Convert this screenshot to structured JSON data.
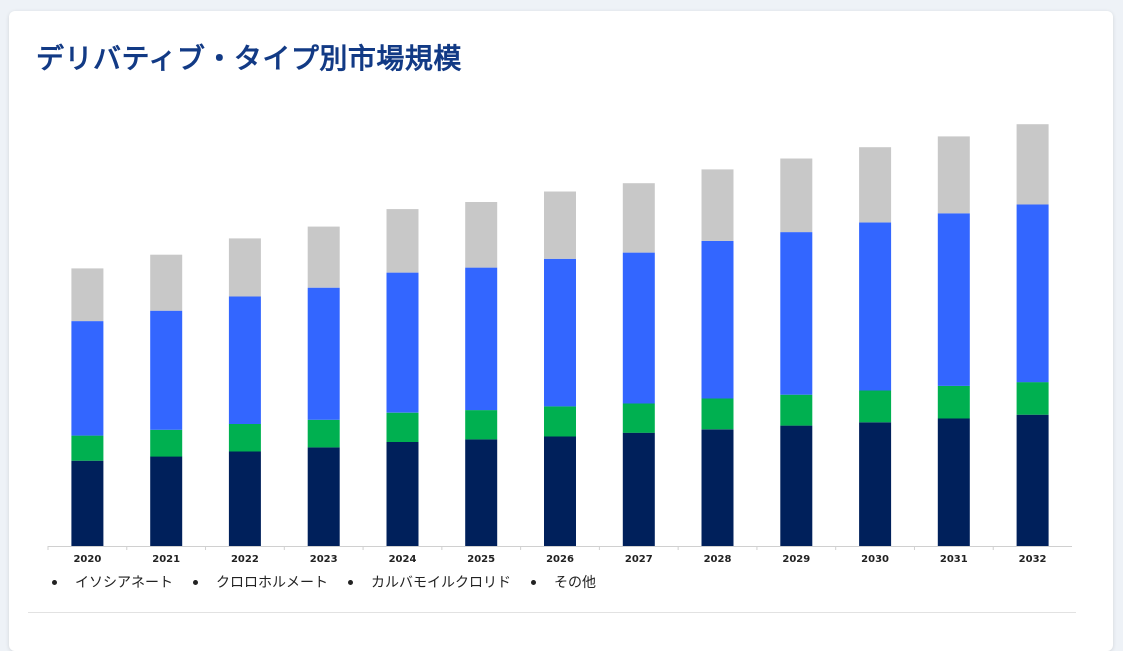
{
  "title": "デリバティブ・タイプ別市場規模",
  "colors": {
    "title": "#123a85",
    "series": [
      "#00205b",
      "#00b050",
      "#3366ff",
      "#c8c8c8"
    ]
  },
  "chart_data": {
    "type": "bar",
    "stacked": true,
    "title": "",
    "xlabel": "",
    "ylabel": "",
    "ylim": [
      0,
      100
    ],
    "grid": false,
    "legend": "bottom-left",
    "categories": [
      "2020",
      "2021",
      "2022",
      "2023",
      "2024",
      "2025",
      "2026",
      "2027",
      "2028",
      "2029",
      "2030",
      "2031",
      "2032"
    ],
    "series": [
      {
        "name": "イソシアネート",
        "values": [
          20.4,
          21.4,
          22.6,
          23.6,
          24.9,
          25.5,
          26.2,
          27.1,
          27.9,
          28.8,
          29.6,
          30.5,
          31.4
        ]
      },
      {
        "name": "クロロホルメート",
        "values": [
          6.0,
          6.4,
          6.6,
          6.6,
          7.0,
          7.0,
          7.2,
          7.0,
          7.4,
          7.4,
          7.6,
          7.8,
          7.8
        ]
      },
      {
        "name": "カルバモイルクロリド",
        "values": [
          27.4,
          28.5,
          30.5,
          31.6,
          33.5,
          34.1,
          35.3,
          36.1,
          37.7,
          38.9,
          40.2,
          41.3,
          42.5
        ]
      },
      {
        "name": "その他",
        "values": [
          12.6,
          13.4,
          13.9,
          14.6,
          15.2,
          15.7,
          16.1,
          16.6,
          17.1,
          17.6,
          18.0,
          18.4,
          19.2
        ]
      }
    ]
  }
}
